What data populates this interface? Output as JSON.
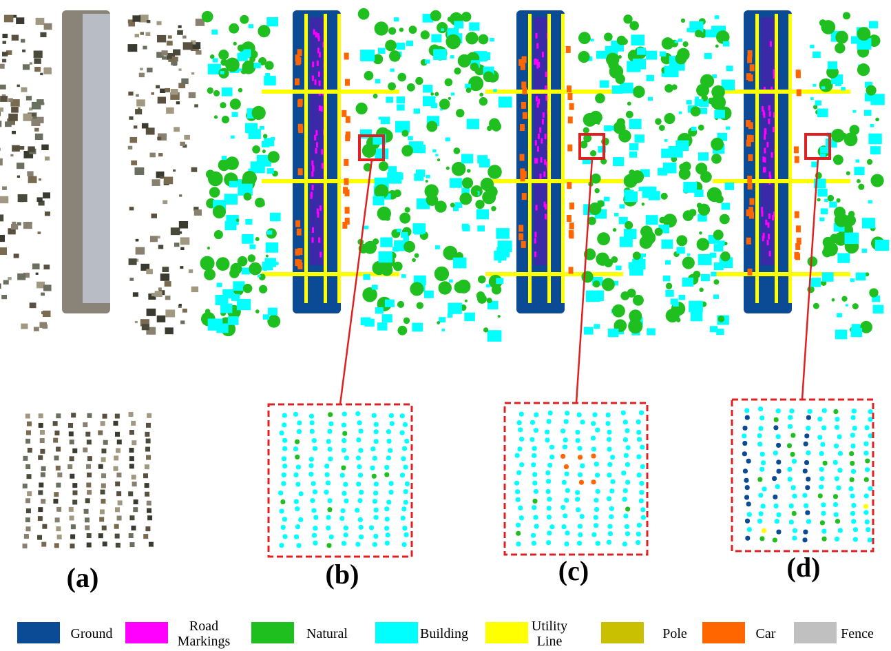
{
  "panels": [
    {
      "label": "(a)"
    },
    {
      "label": "(b)"
    },
    {
      "label": "(c)"
    },
    {
      "label": "(d)"
    }
  ],
  "legend": [
    {
      "label": "Ground",
      "color": "#0b4a94"
    },
    {
      "label": "Road Markings",
      "color": "#ff00ff"
    },
    {
      "label": "Natural",
      "color": "#1fbf1f"
    },
    {
      "label": "Building",
      "color": "#00ffff"
    },
    {
      "label": "Utility Line",
      "color": "#ffff00"
    },
    {
      "label": "Pole",
      "color": "#c8c000"
    },
    {
      "label": "Car",
      "color": "#ff6600"
    },
    {
      "label": "Fence",
      "color": "#c0c0c0"
    }
  ]
}
